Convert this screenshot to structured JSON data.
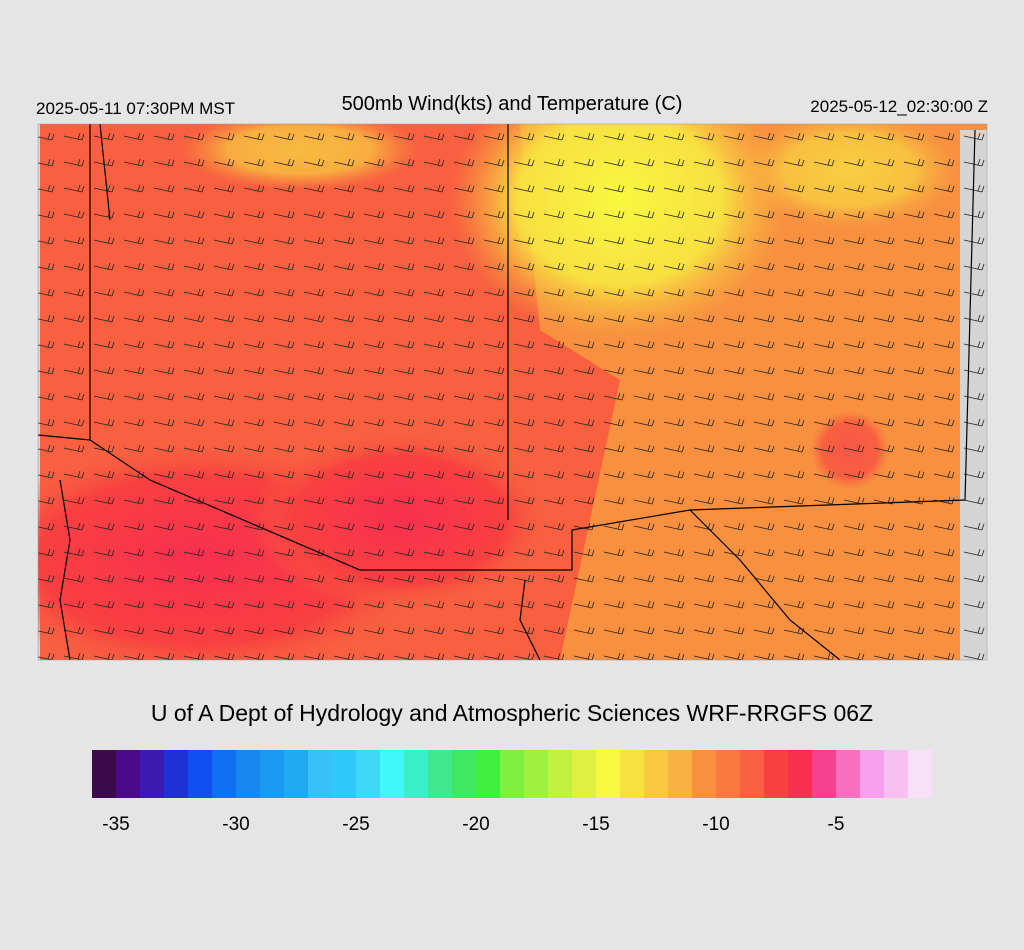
{
  "header": {
    "left": "2025-05-11 07:30PM MST",
    "title": "500mb Wind(kts) and Temperature (C)",
    "right": "2025-05-12_02:30:00 Z"
  },
  "credit": "U of A Dept of Hydrology and Atmospheric Sciences WRF-RRGFS 06Z",
  "colorbar": {
    "lim": [
      -36,
      -1
    ],
    "ticks": [
      -35,
      -30,
      -25,
      -20,
      -15,
      -10,
      -5
    ],
    "colors": [
      "#3a0a4a",
      "#4a0a8a",
      "#3a1ab0",
      "#2030d8",
      "#1050f0",
      "#1070f0",
      "#1888f0",
      "#1a9af0",
      "#20aaf0",
      "#38c0f8",
      "#30c8f8",
      "#40d8f8",
      "#40f8f8",
      "#38f0c8",
      "#40e890",
      "#40e860",
      "#40f040",
      "#80f040",
      "#a0f040",
      "#c0f040",
      "#e0f040",
      "#f8f840",
      "#f8e040",
      "#f8c840",
      "#f8b040",
      "#f89040",
      "#f87840",
      "#f86040",
      "#f84040",
      "#f83050",
      "#f84090",
      "#f870c0",
      "#f8a0f0",
      "#f8c0f0",
      "#f8e0f8"
    ]
  }
}
